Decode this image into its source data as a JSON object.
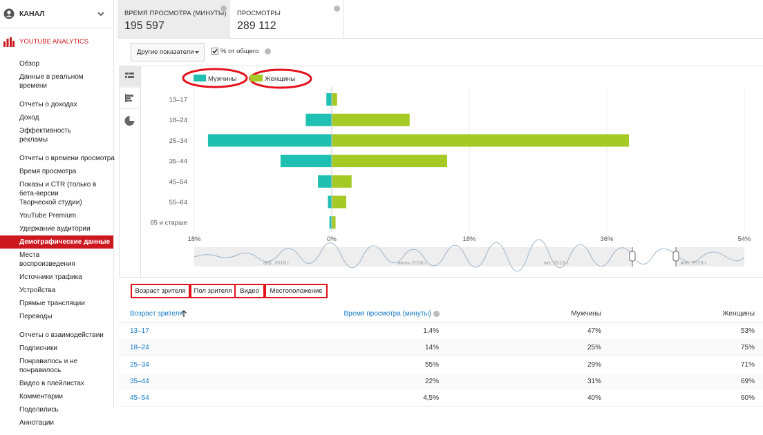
{
  "sidebar": {
    "channel": "КАНАЛ",
    "section": "YOUTUBE ANALYTICS",
    "groups": [
      [
        "Обзор",
        "Данные в реальном времени"
      ],
      [
        "Отчеты о доходах",
        "Доход",
        "Эффективность рекламы"
      ],
      [
        "Отчеты о времени просмотра",
        "Время просмотра",
        "Показы и CTR (только в бета-версии Творческой студии)",
        "YouTube Premium",
        "Удержание аудитории",
        "Демографические данные",
        "Места воспроизведения",
        "Источники трафика",
        "Устройства",
        "Прямые трансляции",
        "Переводы"
      ],
      [
        "Отчеты о взаимодействии",
        "Подписчики",
        "Понравилось и не понравилось",
        "Видео в плейлистах",
        "Комментарии",
        "Поделились",
        "Аннотации"
      ]
    ]
  },
  "metrics": [
    {
      "label": "ВРЕМЯ ПРОСМОТРА (МИНУТЫ)",
      "value": "195 597"
    },
    {
      "label": "ПРОСМОТРЫ",
      "value": "289 112"
    }
  ],
  "toolbar": {
    "menu": "Другие показатели",
    "checkbox": "% от общего"
  },
  "chart_data": {
    "type": "bar",
    "orientation": "horizontal",
    "categories": [
      "13–17",
      "18–24",
      "25–34",
      "35–44",
      "45–54",
      "55–64",
      "65 и старше"
    ],
    "series": [
      {
        "name": "Мужчины",
        "color": "#1fbfb1",
        "values": [
          -0.7,
          -3.4,
          -16.2,
          -6.7,
          -1.8,
          -0.5,
          -0.3
        ]
      },
      {
        "name": "Женщины",
        "color": "#a5c925",
        "values": [
          0.7,
          10.2,
          38.9,
          15.1,
          2.6,
          1.9,
          0.5
        ]
      }
    ],
    "xlim": [
      -18,
      54
    ],
    "xticks": [
      {
        "value": -18,
        "label": "18%"
      },
      {
        "value": 0,
        "label": "0%"
      },
      {
        "value": 18,
        "label": "18%"
      },
      {
        "value": 36,
        "label": "36%"
      },
      {
        "value": 54,
        "label": "54%"
      }
    ],
    "grid": true
  },
  "timeline": {
    "labels": [
      "апр. 2018 г.",
      "июль 2018 г.",
      "окт. 2018 г.",
      "янв. 2019 г."
    ]
  },
  "tabs": [
    "Возраст зрителя",
    "Пол зрителя",
    "Видео",
    "Местоположение"
  ],
  "table": {
    "headers": [
      "Возраст зрителя",
      "Время просмотра (минуты)",
      "Мужчины",
      "Женщины"
    ],
    "rows": [
      [
        "13–17",
        "1,4%",
        "47%",
        "53%"
      ],
      [
        "18–24",
        "14%",
        "25%",
        "75%"
      ],
      [
        "25–34",
        "55%",
        "29%",
        "71%"
      ],
      [
        "35–44",
        "22%",
        "31%",
        "69%"
      ],
      [
        "45–54",
        "4,5%",
        "40%",
        "60%"
      ]
    ]
  }
}
